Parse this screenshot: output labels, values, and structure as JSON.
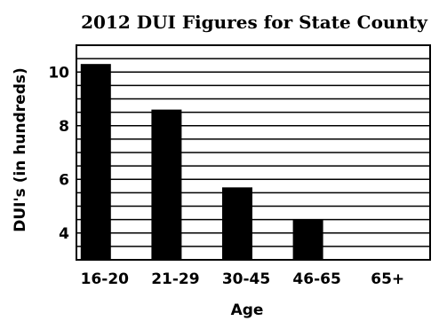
{
  "chart_data": {
    "type": "bar",
    "title": "2012 DUI Figures for State County",
    "xlabel": "Age",
    "ylabel": "DUI's (in hundreds)",
    "categories": [
      "16-20",
      "21-29",
      "30-45",
      "46-65",
      "65+"
    ],
    "values": [
      10.3,
      8.6,
      5.7,
      4.5,
      3.0
    ],
    "ylim": [
      3,
      11
    ],
    "yticks": [
      4,
      6,
      8,
      10
    ],
    "gridlines": [
      3.5,
      4,
      4.5,
      5,
      5.5,
      6,
      6.5,
      7,
      7.5,
      8,
      8.5,
      9,
      9.5,
      10,
      10.5,
      11
    ],
    "grid": true,
    "bar_color": "#000000"
  }
}
